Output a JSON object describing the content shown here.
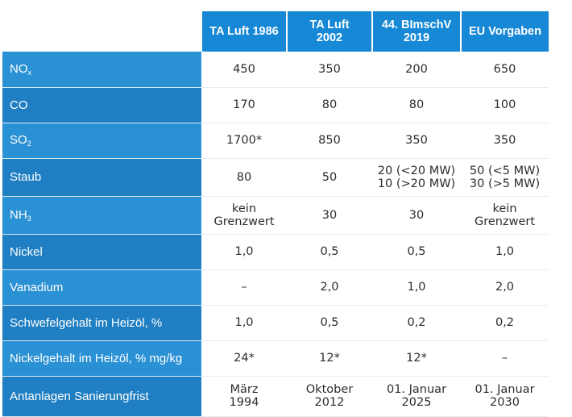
{
  "table": {
    "headers": [
      "",
      [
        "TA Luft 1986"
      ],
      [
        "TA Luft",
        "2002"
      ],
      [
        "44. BImschV",
        "2019"
      ],
      [
        "EU Vorgaben"
      ]
    ],
    "rows": [
      {
        "label": [
          "NO",
          "x"
        ],
        "values": [
          [
            "450"
          ],
          [
            "350"
          ],
          [
            "200"
          ],
          [
            "650"
          ]
        ]
      },
      {
        "label": [
          "CO"
        ],
        "values": [
          [
            "170"
          ],
          [
            "80"
          ],
          [
            "80"
          ],
          [
            "100"
          ]
        ]
      },
      {
        "label": [
          "SO",
          "2"
        ],
        "values": [
          [
            "1700*"
          ],
          [
            "850"
          ],
          [
            "350"
          ],
          [
            "350"
          ]
        ]
      },
      {
        "label": [
          "Staub"
        ],
        "values": [
          [
            "80"
          ],
          [
            "50"
          ],
          [
            "20 (<20 MW)",
            "10 (>20 MW)"
          ],
          [
            "50 (<5 MW)",
            "30 (>5 MW)"
          ]
        ]
      },
      {
        "label": [
          "NH",
          "3"
        ],
        "values": [
          [
            "kein",
            "Grenzwert"
          ],
          [
            "30"
          ],
          [
            "30"
          ],
          [
            "kein",
            "Grenzwert"
          ]
        ]
      },
      {
        "label": [
          "Nickel"
        ],
        "values": [
          [
            "1,0"
          ],
          [
            "0,5"
          ],
          [
            "0,5"
          ],
          [
            "1,0"
          ]
        ]
      },
      {
        "label": [
          "Vanadium"
        ],
        "values": [
          [
            "–"
          ],
          [
            "2,0"
          ],
          [
            "1,0"
          ],
          [
            "2,0"
          ]
        ]
      },
      {
        "label": [
          "Schwefelgehalt im Heizöl, %"
        ],
        "values": [
          [
            "1,0"
          ],
          [
            "0,5"
          ],
          [
            "0,2"
          ],
          [
            "0,2"
          ]
        ]
      },
      {
        "label": [
          "Nickelgehalt im Heizöl, % mg/kg"
        ],
        "values": [
          [
            "24*"
          ],
          [
            "12*"
          ],
          [
            "12*"
          ],
          [
            "–"
          ]
        ]
      },
      {
        "label": [
          "Antanlagen Sanierungfrist"
        ],
        "values": [
          [
            "März",
            "1994"
          ],
          [
            "Oktober",
            "2012"
          ],
          [
            "01. Januar",
            "2025"
          ],
          [
            "01. Januar",
            "2030"
          ]
        ]
      }
    ]
  },
  "colors": {
    "header_bg": "#1688d6",
    "label_bg_light": "#2a91d4",
    "label_bg_dark": "#1f7fc2",
    "cell_text": "#2d2d2d"
  }
}
